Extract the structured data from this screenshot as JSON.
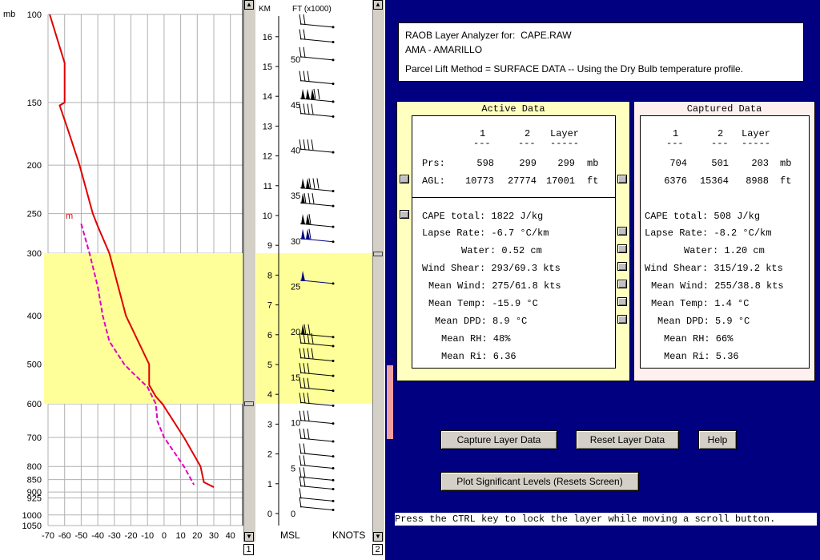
{
  "skewt": {
    "units_label": "mb",
    "pressure_levels": [
      "100",
      "150",
      "200",
      "250",
      "300",
      "400",
      "500",
      "600",
      "700",
      "800",
      "850",
      "900",
      "925",
      "1000",
      "1050"
    ],
    "temp_ticks": [
      "-70",
      "-60",
      "-50",
      "-40",
      "-30",
      "-20",
      "-10",
      "0",
      "10",
      "20",
      "30",
      "40"
    ],
    "temp_unit": "C",
    "moisture_marker": "m",
    "colors": {
      "temperature": "#e00000",
      "dewpoint": "#e000c0",
      "layer": "#ffff99",
      "grid": "#b0b0b0"
    }
  },
  "winds": {
    "km_label": "KM",
    "ft_label": "FT (x1000)",
    "km_ticks": [
      "0",
      "1",
      "2",
      "3",
      "4",
      "5",
      "6",
      "7",
      "8",
      "9",
      "10",
      "11",
      "12",
      "13",
      "14",
      "15",
      "16"
    ],
    "ft_ticks": [
      "0",
      "5",
      "10",
      "15",
      "20",
      "25",
      "30",
      "35",
      "40",
      "45",
      "50"
    ],
    "msl_label": "MSL",
    "knots_label": "KNOTS"
  },
  "scrollbars": {
    "left_index": "1",
    "right_index": "2"
  },
  "header": {
    "line1_prefix": "RAOB Layer Analyzer for:",
    "file": "CAPE.RAW",
    "station": "AMA - AMARILLO",
    "method": "Parcel Lift Method = SURFACE DATA -- Using the Dry Bulb temperature profile."
  },
  "active": {
    "title": "Active Data",
    "col1": "1",
    "col2": "2",
    "col3": "Layer",
    "prs_label": "Prs:",
    "prs1": "598",
    "prs2": "299",
    "prs3": "299",
    "prs_unit": "mb",
    "agl_label": "AGL:",
    "agl1": "10773",
    "agl2": "27774",
    "agl3": "17001",
    "agl_unit": "ft",
    "cape": "CAPE total: 1822 J/kg",
    "lapse": "Lapse Rate: -6.7 °C/km",
    "water": "Water: 0.52 cm",
    "shear": "Wind Shear: 293/69.3 kts",
    "meanwind": "Mean Wind: 275/61.8 kts",
    "meantemp": "Mean Temp: -15.9 °C",
    "meandpd": "Mean DPD: 8.9 °C",
    "meanrh": "Mean RH: 48%",
    "meanri": "Mean Ri: 6.36"
  },
  "captured": {
    "title": "Captured Data",
    "col1": "1",
    "col2": "2",
    "col3": "Layer",
    "prs1": "704",
    "prs2": "501",
    "prs3": "203",
    "prs_unit": "mb",
    "agl1": "6376",
    "agl2": "15364",
    "agl3": "8988",
    "agl_unit": "ft",
    "cape": "CAPE total: 508 J/kg",
    "lapse": "Lapse Rate: -8.2 °C/km",
    "water": "Water: 1.20 cm",
    "shear": "Wind Shear: 315/19.2 kts",
    "meanwind": "Mean Wind: 255/38.8 kts",
    "meantemp": "Mean Temp: 1.4 °C",
    "meandpd": "Mean DPD: 5.9 °C",
    "meanrh": "Mean RH: 66%",
    "meanri": "Mean Ri: 5.36"
  },
  "buttons": {
    "capture": "Capture Layer Data",
    "reset": "Reset Layer Data",
    "help": "Help",
    "plot": "Plot Significant Levels  (Resets Screen)"
  },
  "hint": "Press the CTRL key to lock the layer while moving a scroll button."
}
